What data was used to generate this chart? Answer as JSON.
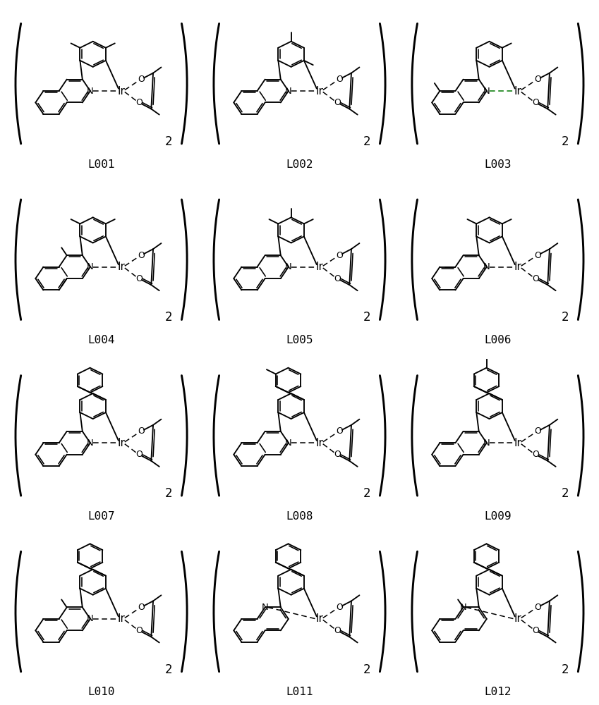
{
  "labels": [
    "L001",
    "L002",
    "L003",
    "L004",
    "L005",
    "L006",
    "L007",
    "L008",
    "L009",
    "L010",
    "L011",
    "L012"
  ],
  "grid": {
    "rows": 4,
    "cols": 3
  },
  "bg_color": "#ffffff",
  "line_color": "#000000",
  "substituents": [
    {
      "aryl": [
        2,
        4
      ],
      "quinoline": [],
      "biaryl": false
    },
    {
      "aryl": [
        1,
        3,
        5
      ],
      "quinoline": [],
      "biaryl": false
    },
    {
      "aryl": [
        4
      ],
      "quinoline": [
        8
      ],
      "biaryl": false
    },
    {
      "aryl": [
        2,
        4
      ],
      "quinoline": [
        5,
        7
      ],
      "biaryl": false
    },
    {
      "aryl": [
        2,
        3,
        4
      ],
      "quinoline": [],
      "biaryl": false
    },
    {
      "aryl": [
        2,
        4
      ],
      "quinoline": [
        6
      ],
      "biaryl": false
    },
    {
      "aryl": [],
      "quinoline": [],
      "biaryl": true,
      "biaryl_sub": []
    },
    {
      "aryl": [],
      "quinoline": [],
      "biaryl": true,
      "biaryl_sub": [
        2
      ]
    },
    {
      "aryl": [],
      "quinoline": [],
      "biaryl": true,
      "biaryl_sub": [
        3
      ]
    },
    {
      "aryl": [],
      "quinoline": [
        5
      ],
      "biaryl": true,
      "biaryl_sub": []
    },
    {
      "aryl": [],
      "quinoline": [],
      "biaryl": true,
      "biaryl_sub": [],
      "isoquinoline": true
    },
    {
      "aryl": [],
      "quinoline": [
        5
      ],
      "biaryl": true,
      "biaryl_sub": [],
      "isoquinoline": true
    }
  ]
}
